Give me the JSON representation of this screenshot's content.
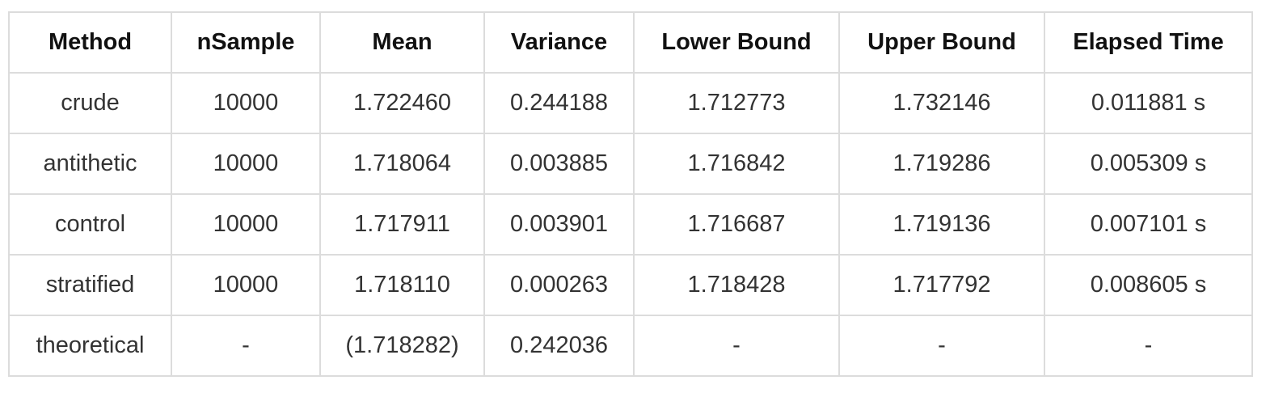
{
  "table": {
    "headers": [
      "Method",
      "nSample",
      "Mean",
      "Variance",
      "Lower Bound",
      "Upper Bound",
      "Elapsed Time"
    ],
    "rows": [
      [
        "crude",
        "10000",
        "1.722460",
        "0.244188",
        "1.712773",
        "1.732146",
        "0.011881 s"
      ],
      [
        "antithetic",
        "10000",
        "1.718064",
        "0.003885",
        "1.716842",
        "1.719286",
        "0.005309 s"
      ],
      [
        "control",
        "10000",
        "1.717911",
        "0.003901",
        "1.716687",
        "1.719136",
        "0.007101 s"
      ],
      [
        "stratified",
        "10000",
        "1.718110",
        "0.000263",
        "1.718428",
        "1.717792",
        "0.008605 s"
      ],
      [
        "theoretical",
        "-",
        "(1.718282)",
        "0.242036",
        "-",
        "-",
        "-"
      ]
    ]
  }
}
